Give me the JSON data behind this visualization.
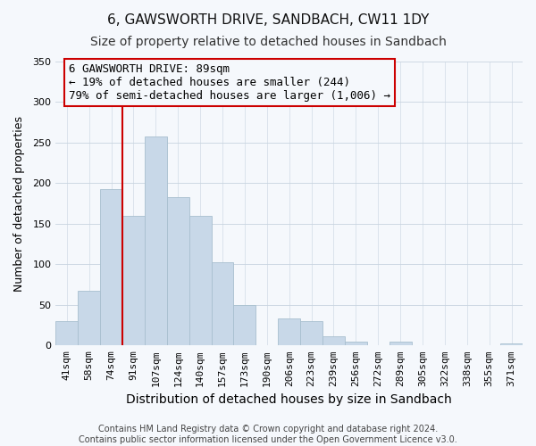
{
  "title": "6, GAWSWORTH DRIVE, SANDBACH, CW11 1DY",
  "subtitle": "Size of property relative to detached houses in Sandbach",
  "xlabel": "Distribution of detached houses by size in Sandbach",
  "ylabel": "Number of detached properties",
  "bar_labels": [
    "41sqm",
    "58sqm",
    "74sqm",
    "91sqm",
    "107sqm",
    "124sqm",
    "140sqm",
    "157sqm",
    "173sqm",
    "190sqm",
    "206sqm",
    "223sqm",
    "239sqm",
    "256sqm",
    "272sqm",
    "289sqm",
    "305sqm",
    "322sqm",
    "338sqm",
    "355sqm",
    "371sqm"
  ],
  "bar_values": [
    30,
    67,
    193,
    160,
    258,
    183,
    160,
    103,
    50,
    0,
    33,
    30,
    11,
    5,
    0,
    5,
    0,
    0,
    0,
    0,
    2
  ],
  "bar_color": "#c8d8e8",
  "bar_edge_color": "#a8bfcf",
  "vline_color": "#cc0000",
  "annotation_line1": "6 GAWSWORTH DRIVE: 89sqm",
  "annotation_line2": "← 19% of detached houses are smaller (244)",
  "annotation_line3": "79% of semi-detached houses are larger (1,006) →",
  "annotation_box_edge": "#cc0000",
  "ylim": [
    0,
    350
  ],
  "yticks": [
    0,
    50,
    100,
    150,
    200,
    250,
    300,
    350
  ],
  "footer_line1": "Contains HM Land Registry data © Crown copyright and database right 2024.",
  "footer_line2": "Contains public sector information licensed under the Open Government Licence v3.0.",
  "background_color": "#f5f8fc",
  "plot_background_color": "#f5f8fc",
  "title_fontsize": 11,
  "subtitle_fontsize": 10,
  "xlabel_fontsize": 10,
  "ylabel_fontsize": 9,
  "tick_fontsize": 8,
  "annotation_fontsize": 9,
  "footer_fontsize": 7
}
